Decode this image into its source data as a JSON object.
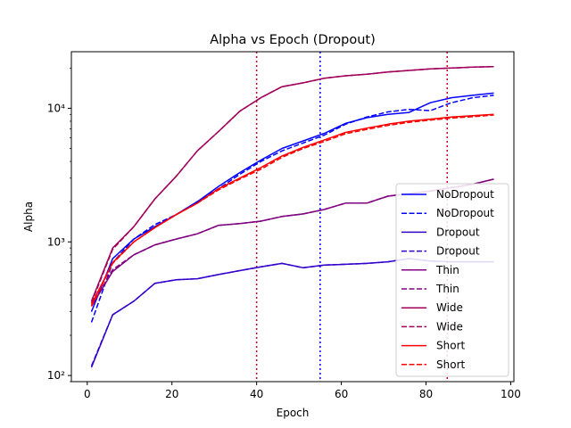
{
  "chart_data": {
    "type": "line",
    "title": "Alpha vs Epoch (Dropout)",
    "xlabel": "Epoch",
    "ylabel": "Alpha",
    "xscale": "linear",
    "yscale": "log",
    "xlim": [
      -3.75,
      100.75
    ],
    "ylim": [
      90,
      26500
    ],
    "x_ticks": [
      0,
      20,
      40,
      60,
      80,
      100
    ],
    "x_tick_labels": [
      "0",
      "20",
      "40",
      "60",
      "80",
      "100"
    ],
    "y_ticks": [
      100,
      1000,
      10000
    ],
    "y_tick_labels": [
      "10²",
      "10³",
      "10⁴"
    ],
    "grid": false,
    "legend_position": "lower right",
    "vlines": [
      {
        "x": 40,
        "color": "#cc0022",
        "style": "dotted"
      },
      {
        "x": 55,
        "color": "#0000ff",
        "style": "dotted"
      },
      {
        "x": 85,
        "color": "#cc0022",
        "style": "dotted"
      }
    ],
    "series": [
      {
        "name": "NoDropout",
        "color": "#0000ff",
        "style": "solid",
        "x": [
          1,
          6,
          11,
          16,
          21,
          26,
          31,
          36,
          41,
          46,
          51,
          56,
          61,
          66,
          71,
          76,
          81,
          86,
          91,
          96
        ],
        "y": [
          300,
          750,
          1050,
          1300,
          1600,
          2000,
          2600,
          3300,
          4100,
          5000,
          5700,
          6500,
          7700,
          8500,
          9000,
          9300,
          11000,
          12000,
          12500,
          13000
        ]
      },
      {
        "name": "NoDropout",
        "color": "#0000ff",
        "style": "dashed",
        "x": [
          1,
          6,
          11,
          16,
          21,
          26,
          31,
          36,
          41,
          46,
          51,
          56,
          61,
          66,
          71,
          76,
          81,
          86,
          91,
          96
        ],
        "y": [
          250,
          700,
          1050,
          1350,
          1600,
          2000,
          2500,
          3200,
          4000,
          4800,
          5500,
          6300,
          7600,
          8600,
          9400,
          9800,
          9600,
          11000,
          12000,
          12500
        ]
      },
      {
        "name": "Dropout",
        "color": "#3300cc",
        "style": "solid",
        "x": [
          1,
          6,
          11,
          16,
          21,
          26,
          31,
          36,
          41,
          46,
          51,
          56,
          61,
          66,
          71,
          76,
          81,
          86,
          91,
          96
        ],
        "y": [
          115,
          285,
          360,
          490,
          520,
          530,
          570,
          610,
          650,
          690,
          640,
          670,
          680,
          690,
          710,
          750,
          720,
          710,
          710,
          710
        ]
      },
      {
        "name": "Dropout",
        "color": "#3300cc",
        "style": "dashed",
        "x": [
          1,
          6,
          11,
          16,
          21,
          26,
          31,
          36,
          41,
          46,
          51,
          56,
          61,
          66,
          71,
          76,
          81,
          86,
          91,
          96
        ],
        "y": [
          118,
          285,
          360,
          490,
          520,
          530,
          570,
          610,
          650,
          690,
          640,
          670,
          680,
          690,
          710,
          750,
          720,
          710,
          710,
          710
        ]
      },
      {
        "name": "Thin",
        "color": "#800080",
        "style": "solid",
        "x": [
          1,
          6,
          11,
          16,
          21,
          26,
          31,
          36,
          41,
          46,
          51,
          56,
          61,
          66,
          71,
          76,
          81,
          86,
          91,
          96
        ],
        "y": [
          330,
          600,
          800,
          950,
          1050,
          1150,
          1330,
          1370,
          1430,
          1550,
          1620,
          1750,
          1950,
          1950,
          2200,
          2300,
          2400,
          2550,
          2700,
          2950
        ]
      },
      {
        "name": "Thin",
        "color": "#800080",
        "style": "dashed",
        "x": [
          1,
          6,
          11,
          16,
          21,
          26,
          31,
          36,
          41,
          46,
          51,
          56,
          61,
          66,
          71,
          76,
          81,
          86,
          91,
          96
        ],
        "y": [
          330,
          620,
          800,
          950,
          1050,
          1150,
          1330,
          1370,
          1430,
          1550,
          1620,
          1750,
          1950,
          1950,
          2200,
          2300,
          2400,
          2550,
          2700,
          2950
        ]
      },
      {
        "name": "Wide",
        "color": "#a0005a",
        "style": "solid",
        "x": [
          1,
          6,
          11,
          16,
          21,
          26,
          31,
          36,
          41,
          46,
          51,
          56,
          61,
          66,
          71,
          76,
          81,
          86,
          91,
          96
        ],
        "y": [
          360,
          900,
          1300,
          2100,
          3100,
          4800,
          6700,
          9500,
          12000,
          14500,
          15500,
          16800,
          17500,
          18000,
          18700,
          19200,
          19700,
          20000,
          20300,
          20500
        ]
      },
      {
        "name": "Wide",
        "color": "#a0005a",
        "style": "dashed",
        "x": [
          1,
          6,
          11,
          16,
          21,
          26,
          31,
          36,
          41,
          46,
          51,
          56,
          61,
          66,
          71,
          76,
          81,
          86,
          91,
          96
        ],
        "y": [
          350,
          880,
          1300,
          2100,
          3100,
          4800,
          6700,
          9500,
          12000,
          14500,
          15500,
          16800,
          17500,
          18000,
          18700,
          19200,
          19700,
          20000,
          20300,
          20500
        ]
      },
      {
        "name": "Short",
        "color": "#ff0000",
        "style": "solid",
        "x": [
          1,
          6,
          11,
          16,
          21,
          26,
          31,
          36,
          41,
          46,
          51,
          56,
          61,
          66,
          71,
          76,
          81,
          86,
          91,
          96
        ],
        "y": [
          340,
          700,
          1000,
          1280,
          1600,
          1950,
          2500,
          3000,
          3600,
          4400,
          5100,
          5800,
          6600,
          7100,
          7600,
          8000,
          8300,
          8600,
          8800,
          9000
        ]
      },
      {
        "name": "Short",
        "color": "#ff0000",
        "style": "dashed",
        "x": [
          1,
          6,
          11,
          16,
          21,
          26,
          31,
          36,
          41,
          46,
          51,
          56,
          61,
          66,
          71,
          76,
          81,
          86,
          91,
          96
        ],
        "y": [
          330,
          690,
          1000,
          1280,
          1600,
          1950,
          2450,
          2950,
          3500,
          4300,
          5000,
          5650,
          6450,
          6950,
          7450,
          7850,
          8150,
          8450,
          8650,
          8900
        ]
      }
    ]
  }
}
